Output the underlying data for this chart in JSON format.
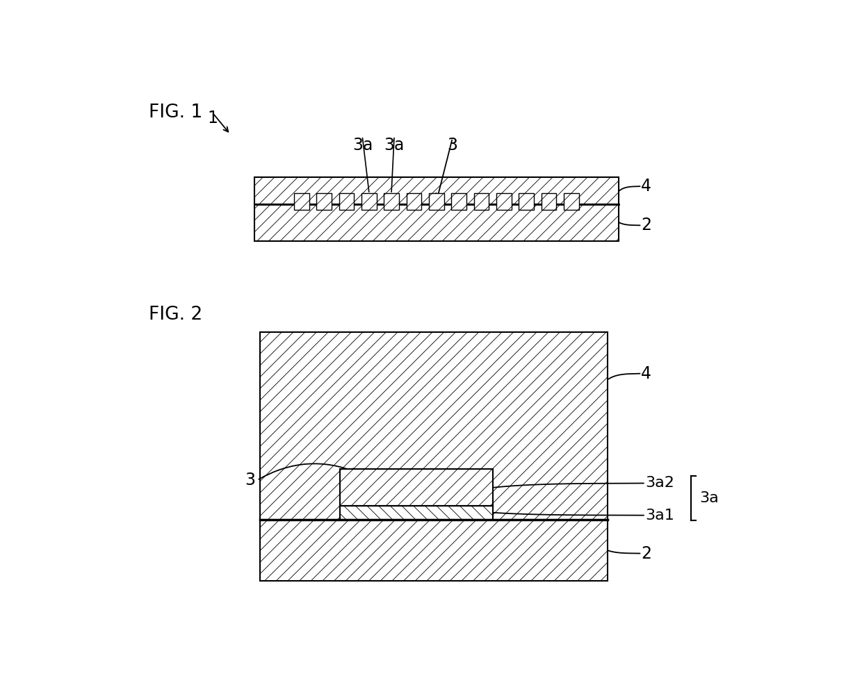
{
  "bg_color": "#ffffff",
  "line_color": "#000000",
  "fig1_label": "FIG. 1",
  "fig2_label": "FIG. 2",
  "label_1": "1",
  "label_2": "2",
  "label_3": "3",
  "label_3a": "3a",
  "label_3a1": "3a1",
  "label_3a2": "3a2",
  "label_4": "4",
  "font_size_fig": 19,
  "font_size_label": 17
}
